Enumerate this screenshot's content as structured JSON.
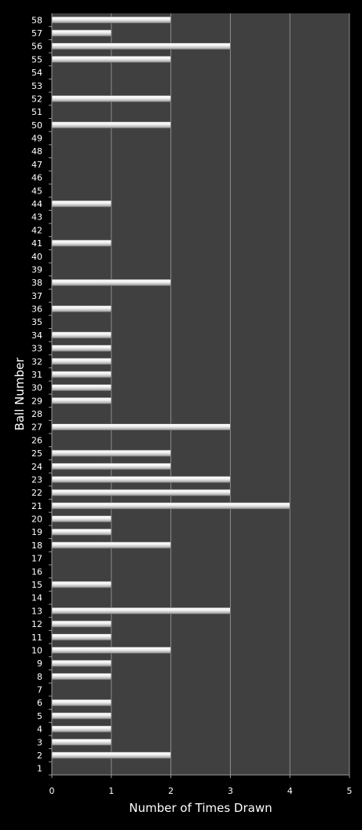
{
  "chart_data": {
    "type": "bar",
    "orientation": "horizontal",
    "xlabel": "Number of Times Drawn",
    "ylabel": "Ball Number",
    "xlim": [
      0,
      5
    ],
    "xticks": [
      0,
      1,
      2,
      3,
      4,
      5
    ],
    "grid": "vertical",
    "legend": "none",
    "categories": [
      "1",
      "2",
      "3",
      "4",
      "5",
      "6",
      "7",
      "8",
      "9",
      "10",
      "11",
      "12",
      "13",
      "14",
      "15",
      "16",
      "17",
      "18",
      "19",
      "20",
      "21",
      "22",
      "23",
      "24",
      "25",
      "26",
      "27",
      "28",
      "29",
      "30",
      "31",
      "32",
      "33",
      "34",
      "35",
      "36",
      "37",
      "38",
      "39",
      "40",
      "41",
      "42",
      "43",
      "44",
      "45",
      "46",
      "47",
      "48",
      "49",
      "50",
      "51",
      "52",
      "53",
      "54",
      "55",
      "56",
      "57",
      "58"
    ],
    "values": [
      0,
      2,
      1,
      1,
      1,
      1,
      0,
      1,
      1,
      2,
      1,
      1,
      3,
      0,
      1,
      0,
      0,
      2,
      1,
      1,
      4,
      3,
      3,
      2,
      2,
      0,
      3,
      0,
      1,
      1,
      1,
      1,
      1,
      1,
      0,
      1,
      0,
      2,
      0,
      0,
      1,
      0,
      0,
      1,
      0,
      0,
      0,
      0,
      0,
      2,
      0,
      2,
      0,
      0,
      2,
      3,
      1,
      2
    ],
    "colors": {
      "background": "#000000",
      "plot_area": "#404040",
      "gridline": "#8c8c8c",
      "axis": "#9a9a9a",
      "text": "#ffffff",
      "bar_light": "#ffffff",
      "bar_dark": "#9e9e9e"
    }
  }
}
